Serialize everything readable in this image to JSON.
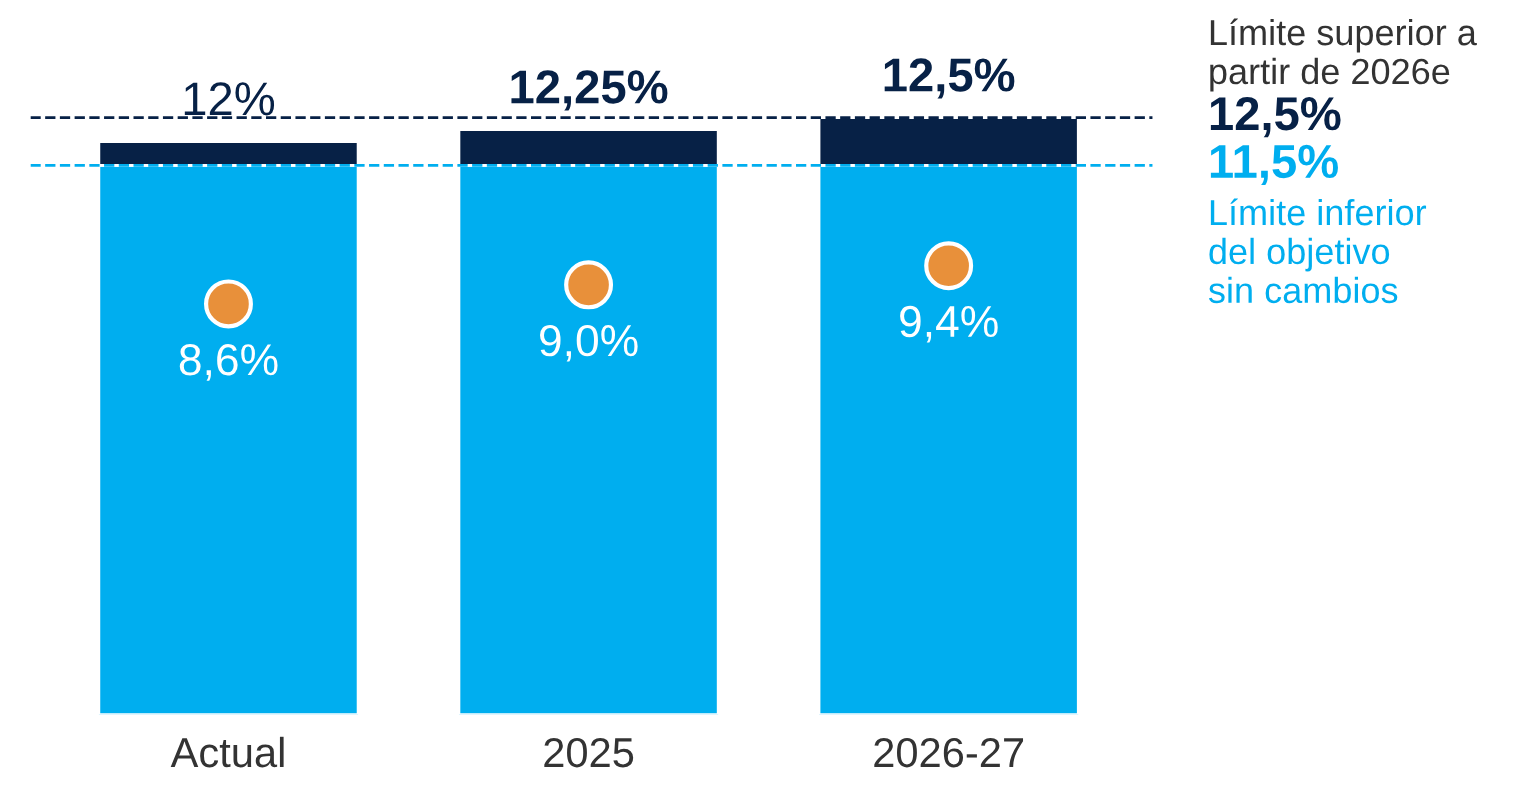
{
  "chart_data": {
    "type": "bar",
    "stacked": true,
    "categories": [
      "Actual",
      "2025",
      "2026-27"
    ],
    "series": [
      {
        "color": "#00aeef",
        "values": [
          11.5,
          11.5,
          11.5
        ]
      },
      {
        "color": "#072146",
        "values": [
          0.5,
          0.75,
          1.0
        ]
      },
      {
        "type": "scatter",
        "color": "#e8903a",
        "values": [
          8.6,
          9.0,
          9.4
        ],
        "value_labels": [
          "8,6%",
          "9,0%",
          "9,4%"
        ]
      }
    ],
    "totals": [
      "12%",
      "12,25%",
      "12,5%"
    ],
    "tick_labels": "x",
    "grid": false,
    "legend": false,
    "ref_lines": [
      {
        "axis": "y",
        "value": 12.5,
        "label": "12,5%",
        "color": "#072146",
        "line_style": "dashed"
      },
      {
        "axis": "y",
        "value": 11.5,
        "label": "11,5%",
        "color": "#00aeef",
        "line_style": "dashed"
      }
    ],
    "annotations": [
      "Límite superior a\npartir de 2026e",
      "Límite inferior\ndel objetivo\nsin cambios"
    ]
  }
}
